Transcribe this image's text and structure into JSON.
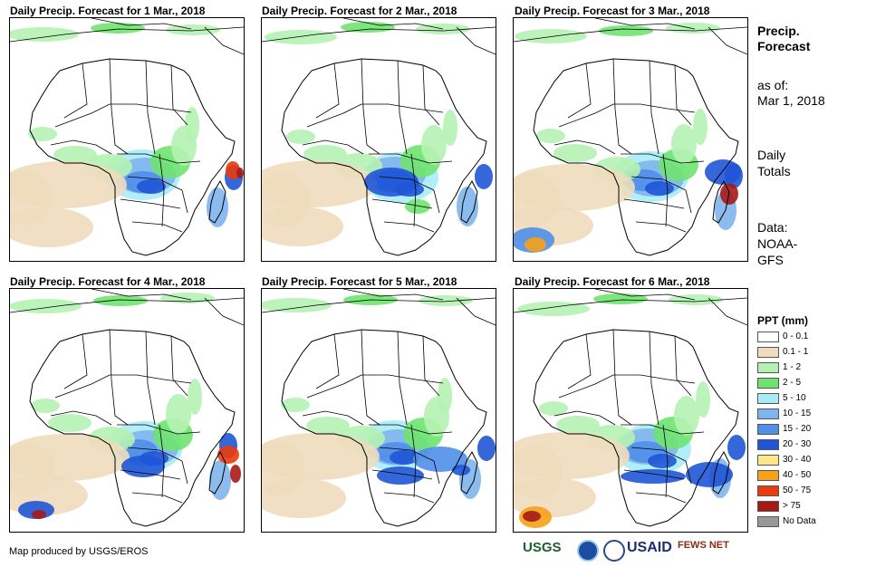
{
  "panels": [
    {
      "title": "Daily Precip. Forecast for 1 Mar., 2018"
    },
    {
      "title": "Daily Precip. Forecast for 2 Mar., 2018"
    },
    {
      "title": "Daily Precip. Forecast for 3 Mar., 2018"
    },
    {
      "title": "Daily Precip. Forecast for 4 Mar., 2018"
    },
    {
      "title": "Daily Precip. Forecast for 5 Mar., 2018"
    },
    {
      "title": "Daily Precip. Forecast for 6 Mar., 2018"
    }
  ],
  "sidebar": {
    "heading_line1": "Precip.",
    "heading_line2": "Forecast",
    "asof_line1": "as of:",
    "asof_line2": "Mar 1, 2018",
    "totals_line1": "Daily",
    "totals_line2": "Totals",
    "data_line1": "Data:",
    "data_line2": "NOAA-",
    "data_line3": "GFS"
  },
  "legend": {
    "title": "PPT (mm)",
    "items": [
      {
        "label": "0 - 0.1",
        "color": "#ffffff"
      },
      {
        "label": "0.1 - 1",
        "color": "#eedcbc"
      },
      {
        "label": "1 - 2",
        "color": "#b5f2b2"
      },
      {
        "label": "2 - 5",
        "color": "#6fe36f"
      },
      {
        "label": "5 - 10",
        "color": "#a8ecf8"
      },
      {
        "label": "10 - 15",
        "color": "#7fb4ec"
      },
      {
        "label": "15 - 20",
        "color": "#4f8fe8"
      },
      {
        "label": "20 - 30",
        "color": "#1f55d6"
      },
      {
        "label": "30 - 40",
        "color": "#fbe785"
      },
      {
        "label": "40 - 50",
        "color": "#f5a11a"
      },
      {
        "label": "50 - 75",
        "color": "#ea3b0c"
      },
      {
        "label": "> 75",
        "color": "#a61a16"
      },
      {
        "label": "No Data",
        "color": "#999999"
      }
    ]
  },
  "footer": {
    "credit": "Map produced by USGS/EROS",
    "logo_usgs": "USGS",
    "logo_usaid": "USAID",
    "logo_fews": "FEWS NET"
  }
}
